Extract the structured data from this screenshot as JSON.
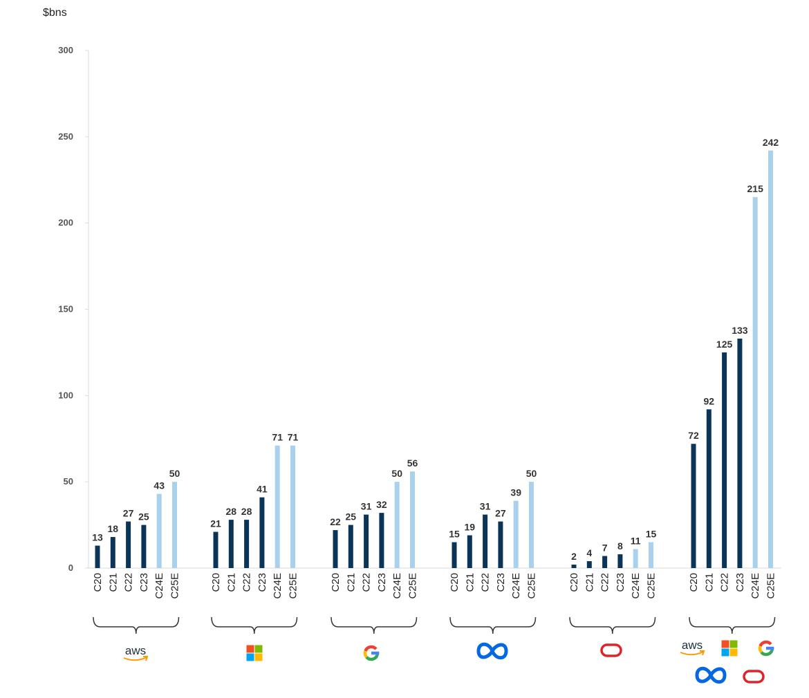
{
  "unit_label": "$bns",
  "colors": {
    "actual": "#0b3558",
    "estimate": "#a9d1ee",
    "axis": "#d9d9d9",
    "brace": "#333333",
    "oracle_red": "#e0222b",
    "meta_blue": "#0668e1",
    "aws_dark": "#222f3e",
    "aws_orange": "#ff9900",
    "ms_red": "#f25022",
    "ms_green": "#7fba00",
    "ms_blue": "#00a4ef",
    "ms_yellow": "#ffb900",
    "g_blue": "#4285f4",
    "g_red": "#ea4335",
    "g_yellow": "#fbbc05",
    "g_green": "#34a853"
  },
  "chart_data": {
    "type": "bar",
    "title": "",
    "xlabel": "",
    "ylabel": "$bns",
    "ylim": [
      0,
      300
    ],
    "yticks": [
      0,
      50,
      100,
      150,
      200,
      250,
      300
    ],
    "grid": false,
    "categories": [
      "C20",
      "C21",
      "C22",
      "C23",
      "C24E",
      "C25E"
    ],
    "estimate_categories": [
      "C24E",
      "C25E"
    ],
    "groups": [
      {
        "logos": [
          "aws-logo"
        ],
        "values": [
          13,
          18,
          27,
          25,
          43,
          50
        ],
        "labels": [
          "13",
          "18",
          "27",
          "25",
          "43",
          "50"
        ]
      },
      {
        "logos": [
          "microsoft-logo"
        ],
        "values": [
          21,
          28,
          28,
          41,
          71,
          71
        ],
        "labels": [
          "21",
          "28",
          "28",
          "41",
          "71",
          "71"
        ]
      },
      {
        "logos": [
          "google-logo"
        ],
        "values": [
          22,
          25,
          31,
          32,
          50,
          56
        ],
        "labels": [
          "22",
          "25",
          "31",
          "32",
          "50",
          "56"
        ]
      },
      {
        "logos": [
          "meta-logo"
        ],
        "values": [
          15,
          19,
          31,
          27,
          39,
          50
        ],
        "labels": [
          "15",
          "19",
          "31",
          "27",
          "39",
          "50"
        ]
      },
      {
        "logos": [
          "oracle-logo"
        ],
        "values": [
          2,
          4,
          7,
          8,
          11,
          15
        ],
        "labels": [
          "2",
          "4",
          "7",
          "8",
          "11",
          "15"
        ]
      },
      {
        "logos": [
          "aws-logo",
          "microsoft-logo",
          "google-logo",
          "meta-logo",
          "oracle-logo"
        ],
        "values": [
          72,
          92,
          125,
          133,
          215,
          242
        ],
        "labels": [
          "72",
          "92",
          "125",
          "133",
          "215",
          "242"
        ]
      }
    ],
    "logo_text": {
      "aws": "aws"
    }
  }
}
